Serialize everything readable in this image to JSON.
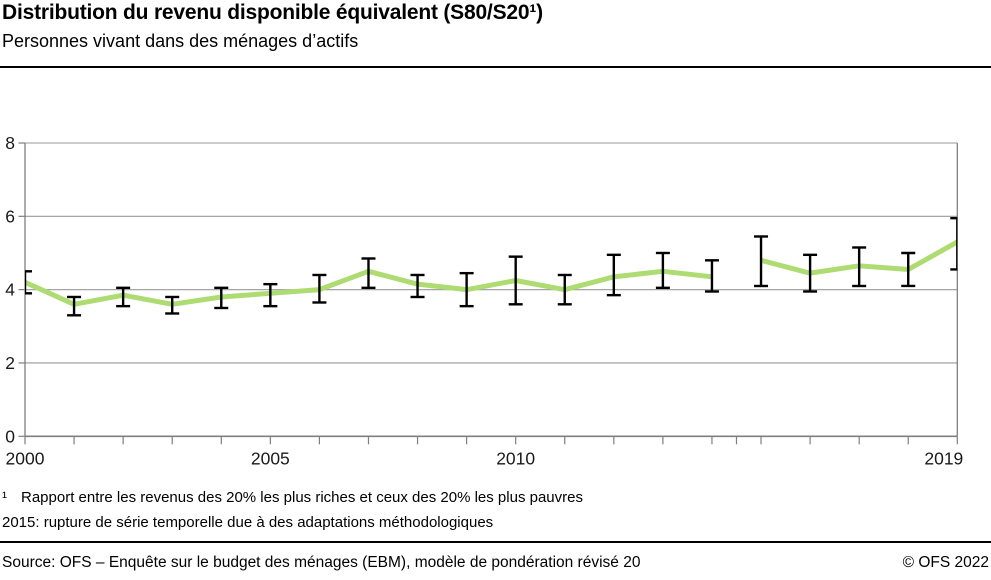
{
  "header": {
    "title": "Distribution du revenu disponible équivalent (S80/S20¹)",
    "subtitle": "Personnes vivant dans des ménages d’actifs"
  },
  "footnotes": {
    "marker": "¹",
    "line1": "Rapport entre les revenus des 20% les plus riches et ceux des 20% les plus pauvres",
    "line2": "2015: rupture de série temporelle due à des adaptations méthodologiques"
  },
  "footer": {
    "source": "Source: OFS – Enquête sur le budget des ménages (EBM), modèle de pondération révisé 20",
    "copyright": "© OFS 2022"
  },
  "chart_data": {
    "type": "line",
    "title": "Distribution du revenu disponible équivalent (S80/S20)",
    "xlabel": "",
    "ylabel": "",
    "x": [
      2000,
      2001,
      2002,
      2003,
      2004,
      2005,
      2006,
      2007,
      2008,
      2009,
      2010,
      2011,
      2012,
      2013,
      2014,
      2015,
      2016,
      2017,
      2018,
      2019
    ],
    "series": [
      {
        "name": "S80/S20",
        "values": [
          4.2,
          3.6,
          3.85,
          3.6,
          3.8,
          3.9,
          4.0,
          4.5,
          4.15,
          4.0,
          4.25,
          4.0,
          4.35,
          4.5,
          4.35,
          4.8,
          4.45,
          4.65,
          4.55,
          5.3
        ],
        "ci_low": [
          3.9,
          3.3,
          3.55,
          3.35,
          3.5,
          3.55,
          3.65,
          4.05,
          3.8,
          3.55,
          3.6,
          3.6,
          3.85,
          4.05,
          3.95,
          4.1,
          3.95,
          4.1,
          4.1,
          4.55
        ],
        "ci_high": [
          4.5,
          3.8,
          4.05,
          3.8,
          4.05,
          4.15,
          4.4,
          4.85,
          4.4,
          4.45,
          4.9,
          4.4,
          4.95,
          5.0,
          4.8,
          5.45,
          4.95,
          5.15,
          5.0,
          5.95
        ]
      }
    ],
    "series_break_after": 2014,
    "break_tick_x": 2014.5,
    "ylim": [
      0,
      8
    ],
    "yticks": [
      0,
      2,
      4,
      6,
      8
    ],
    "xtick_labels": [
      2000,
      2005,
      2010,
      2019
    ],
    "grid": true,
    "legend_position": "none",
    "error_bars": true,
    "colors": {
      "line": "#aedb72",
      "error_bar": "#000000",
      "grid": "#999999",
      "axis": "#7f7f7f",
      "tick_label": "#1a1a1a"
    }
  }
}
